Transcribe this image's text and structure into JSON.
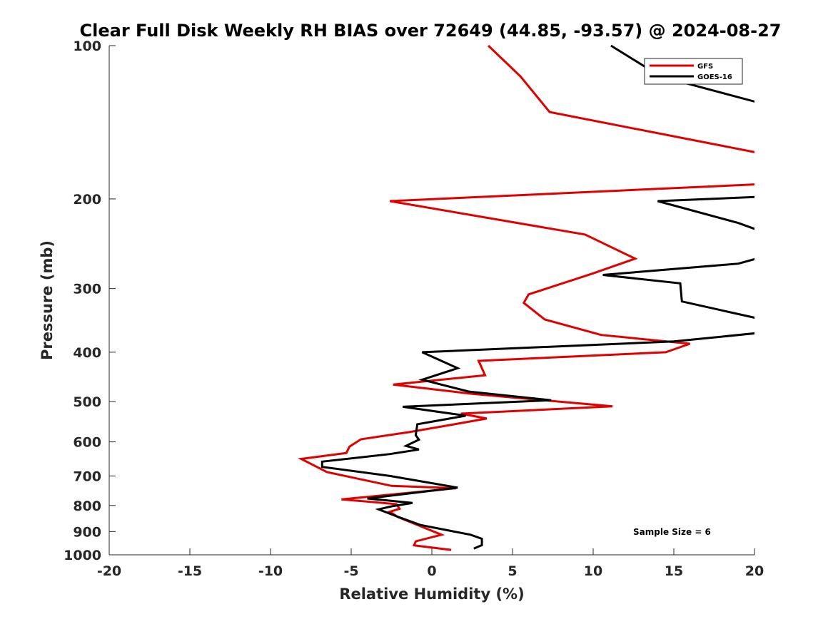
{
  "chart_data": {
    "type": "line",
    "title": "Clear Full Disk Weekly RH BIAS over 72649 (44.85, -93.57) @ 2024-08-27",
    "xlabel": "Relative Humidity (%)",
    "ylabel": "Pressure (mb)",
    "xlim": [
      -20,
      20
    ],
    "ylim": [
      1000,
      100
    ],
    "y_scale": "log",
    "x_ticks": [
      -20,
      -15,
      -10,
      -5,
      0,
      5,
      10,
      15,
      20
    ],
    "x_tick_labels": [
      "-20",
      "-15",
      "-10",
      "-5",
      "0",
      "5",
      "10",
      "15",
      "20"
    ],
    "y_ticks": [
      100,
      200,
      300,
      400,
      500,
      600,
      700,
      800,
      900,
      1000
    ],
    "y_tick_labels": [
      "100",
      "200",
      "300",
      "400",
      "500",
      "600",
      "700",
      "800",
      "900",
      "1000"
    ],
    "grid": false,
    "legend_position": "top-right",
    "annotation": "Sample Size = 6",
    "series": [
      {
        "name": "GFS",
        "color": "#e00000",
        "points": [
          [
            3.5,
            100
          ],
          [
            5.5,
            115
          ],
          [
            7.3,
            135
          ],
          [
            20.5,
            163
          ],
          [
            20.5,
            187
          ],
          [
            -2.6,
            202
          ],
          [
            9.5,
            235
          ],
          [
            12.6,
            262
          ],
          [
            10.0,
            280
          ],
          [
            6.0,
            308
          ],
          [
            5.7,
            320
          ],
          [
            7.0,
            345
          ],
          [
            10.5,
            370
          ],
          [
            16.0,
            385
          ],
          [
            14.5,
            400
          ],
          [
            2.9,
            416
          ],
          [
            3.3,
            444
          ],
          [
            -2.4,
            463
          ],
          [
            2.5,
            483
          ],
          [
            11.2,
            511
          ],
          [
            1.8,
            528
          ],
          [
            3.4,
            540
          ],
          [
            1.0,
            557
          ],
          [
            -1.4,
            574
          ],
          [
            -4.4,
            593
          ],
          [
            -5.1,
            613
          ],
          [
            -5.3,
            631
          ],
          [
            -8.1,
            648
          ],
          [
            -6.5,
            688
          ],
          [
            -2.5,
            732
          ],
          [
            1.5,
            740
          ],
          [
            -5.6,
            778
          ],
          [
            -2.2,
            795
          ],
          [
            -2.0,
            812
          ],
          [
            -2.6,
            823
          ],
          [
            -2.1,
            843
          ],
          [
            0.6,
            913
          ],
          [
            -1.0,
            941
          ],
          [
            -1.1,
            958
          ],
          [
            1.2,
            978
          ]
        ]
      },
      {
        "name": "GOES-16",
        "color": "#000000",
        "points": [
          [
            11.1,
            100
          ],
          [
            14.2,
            115
          ],
          [
            20.5,
            130
          ],
          [
            20.5,
            198
          ],
          [
            14.0,
            202
          ],
          [
            19.0,
            223
          ],
          [
            20.5,
            232
          ],
          [
            20.5,
            260
          ],
          [
            19.0,
            268
          ],
          [
            10.6,
            282
          ],
          [
            15.4,
            293
          ],
          [
            15.5,
            318
          ],
          [
            20.5,
            345
          ],
          [
            20.5,
            366
          ],
          [
            15.0,
            381
          ],
          [
            -0.6,
            400
          ],
          [
            1.6,
            430
          ],
          [
            -0.6,
            453
          ],
          [
            2.3,
            478
          ],
          [
            7.4,
            497
          ],
          [
            -1.8,
            512
          ],
          [
            2.1,
            533
          ],
          [
            -0.9,
            554
          ],
          [
            -1.0,
            582
          ],
          [
            -0.8,
            594
          ],
          [
            -1.6,
            611
          ],
          [
            -0.8,
            621
          ],
          [
            -2.6,
            634
          ],
          [
            -6.8,
            656
          ],
          [
            -6.8,
            672
          ],
          [
            -2.6,
            700
          ],
          [
            1.6,
            738
          ],
          [
            -4.0,
            775
          ],
          [
            -1.2,
            791
          ],
          [
            -2.5,
            803
          ],
          [
            -3.3,
            814
          ],
          [
            -2.2,
            840
          ],
          [
            -0.7,
            874
          ],
          [
            2.4,
            913
          ],
          [
            3.1,
            930
          ],
          [
            3.1,
            957
          ],
          [
            2.6,
            972
          ]
        ]
      }
    ]
  }
}
